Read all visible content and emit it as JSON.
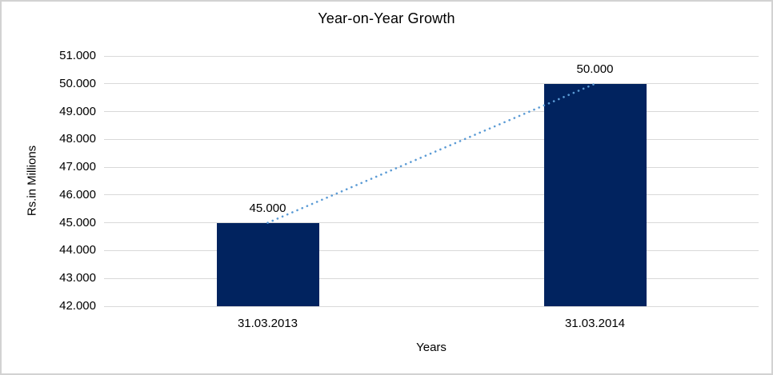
{
  "chart_data": {
    "type": "bar",
    "title": "Year-on-Year Growth",
    "xlabel": "Years",
    "ylabel": "Rs.in Millions",
    "categories": [
      "31.03.2013",
      "31.03.2014"
    ],
    "values": [
      45000,
      50000
    ],
    "data_labels": [
      "45.000",
      "50.000"
    ],
    "ylim": [
      42000,
      51000
    ],
    "ytick_step": 1000,
    "ytick_labels": [
      "42.000",
      "43.000",
      "44.000",
      "45.000",
      "46.000",
      "47.000",
      "48.000",
      "49.000",
      "50.000",
      "51.000"
    ],
    "grid": true,
    "legend": "none",
    "trendline": {
      "style": "dotted",
      "connects": [
        45000,
        50000
      ]
    },
    "colors": {
      "bar": "#01235f",
      "trendline": "#5b9bd5",
      "gridline": "#d9d9d9",
      "text": "#000000",
      "frame_border": "#d2d2d2",
      "background": "#ffffff"
    }
  }
}
